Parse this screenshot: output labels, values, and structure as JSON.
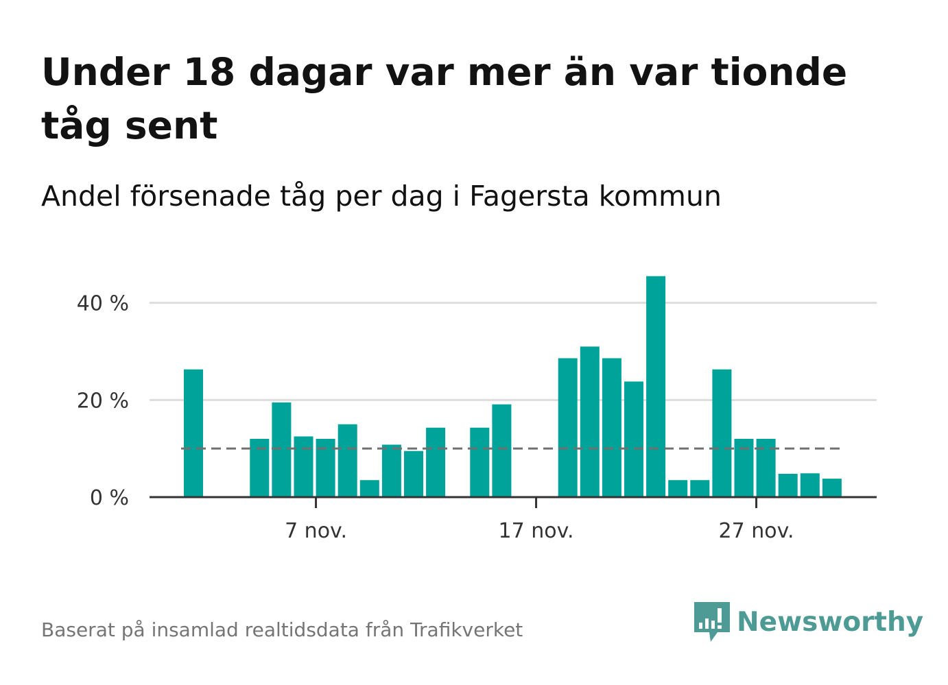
{
  "header": {
    "title": "Under 18 dagar var mer än var tionde tåg sent",
    "subtitle": "Andel försenade tåg per dag i Fagersta kommun"
  },
  "footer": {
    "source": "Baserat på insamlad realtidsdata från Trafikverket",
    "brand": "Newsworthy"
  },
  "colors": {
    "bar": "#00a39a",
    "reference_line": "#707070",
    "grid": "#dddddd",
    "axis": "#333333",
    "brand": "#4e9a94"
  },
  "chart_data": {
    "type": "bar",
    "x": [
      "2024-11-01",
      "2024-11-02",
      "2024-11-03",
      "2024-11-04",
      "2024-11-05",
      "2024-11-06",
      "2024-11-07",
      "2024-11-08",
      "2024-11-09",
      "2024-11-10",
      "2024-11-11",
      "2024-11-12",
      "2024-11-13",
      "2024-11-14",
      "2024-11-15",
      "2024-11-16",
      "2024-11-17",
      "2024-11-18",
      "2024-11-19",
      "2024-11-20",
      "2024-11-21",
      "2024-11-22",
      "2024-11-23",
      "2024-11-24",
      "2024-11-25",
      "2024-11-26",
      "2024-11-27",
      "2024-11-28",
      "2024-11-29",
      "2024-11-30"
    ],
    "values": [
      26.3,
      0,
      0,
      12.0,
      19.5,
      12.5,
      12.0,
      15.0,
      3.5,
      10.8,
      9.5,
      14.3,
      0,
      14.3,
      19.1,
      0,
      0,
      28.6,
      31.0,
      28.6,
      23.8,
      45.5,
      3.5,
      3.5,
      26.3,
      12.0,
      12.0,
      4.8,
      4.9,
      3.8
    ],
    "x_tick_labels": [
      {
        "x": "2024-11-07",
        "label": "7 nov."
      },
      {
        "x": "2024-11-17",
        "label": "17 nov."
      },
      {
        "x": "2024-11-27",
        "label": "27 nov."
      }
    ],
    "y_ticks": [
      {
        "value": 0,
        "label": "0 %"
      },
      {
        "value": 20,
        "label": "20 %"
      },
      {
        "value": 40,
        "label": "40 %"
      }
    ],
    "ylim": [
      0,
      48
    ],
    "reference_line": 10,
    "grid": true,
    "xlabel": "",
    "ylabel": ""
  }
}
